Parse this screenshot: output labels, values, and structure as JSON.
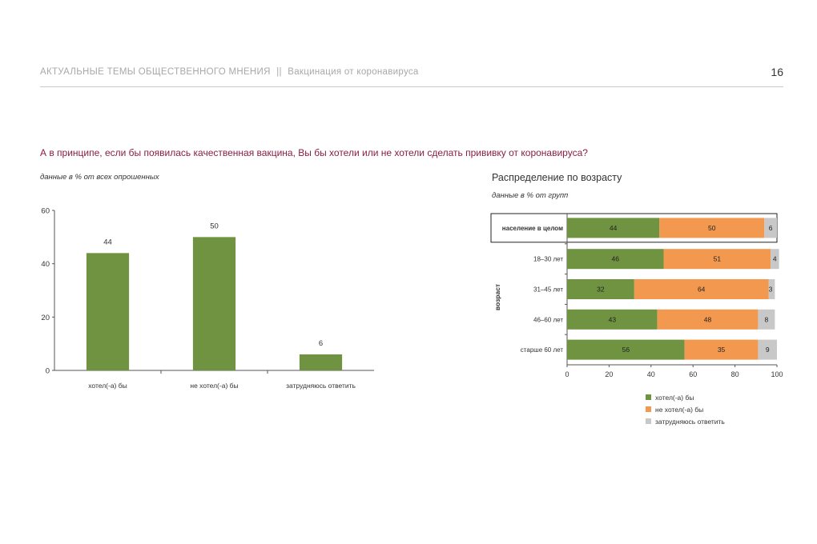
{
  "header": {
    "section": "АКТУАЛЬНЫЕ ТЕМЫ ОБЩЕСТВЕННОГО МНЕНИЯ",
    "separator": "||",
    "subsection": "Вакцинация от коронавируса",
    "page_number": "16"
  },
  "question": "А в принципе, если бы появилась качественная вакцина, Вы бы хотели или не хотели сделать прививку от коронавируса?",
  "left_note": "данные в % от всех опрошенных",
  "right_title": "Распределение по возрасту",
  "right_note": "данные в % от групп",
  "legend": [
    {
      "label": "хотел(-а) бы",
      "color": "#6f9340"
    },
    {
      "label": "не хотел(-а) бы",
      "color": "#f3994f"
    },
    {
      "label": "затрудняюсь ответить",
      "color": "#c8c8c8"
    }
  ],
  "chart_data": [
    {
      "type": "bar",
      "categories": [
        "хотел(-а) бы",
        "не хотел(-а) бы",
        "затрудняюсь ответить"
      ],
      "values": [
        44,
        50,
        6
      ],
      "ylim": [
        0,
        60
      ],
      "yticks": [
        0,
        20,
        40,
        60
      ],
      "color": "#6f9340",
      "grid": false
    },
    {
      "type": "bar",
      "orientation": "horizontal",
      "stacked": true,
      "categories": [
        "население в целом",
        "18–30 лет",
        "31–45 лет",
        "46–60 лет",
        "старше 60 лет"
      ],
      "ylabel": "возраст",
      "series": [
        {
          "name": "хотел(-а) бы",
          "values": [
            44,
            46,
            32,
            43,
            56
          ],
          "color": "#6f9340"
        },
        {
          "name": "не хотел(-а) бы",
          "values": [
            50,
            51,
            64,
            48,
            35
          ],
          "color": "#f3994f"
        },
        {
          "name": "затрудняюсь ответить",
          "values": [
            6,
            4,
            3,
            8,
            9
          ],
          "color": "#c8c8c8"
        }
      ],
      "xlim": [
        0,
        100
      ],
      "xticks": [
        0,
        20,
        40,
        60,
        80,
        100
      ],
      "grid": false,
      "legend_position": "bottom"
    }
  ]
}
